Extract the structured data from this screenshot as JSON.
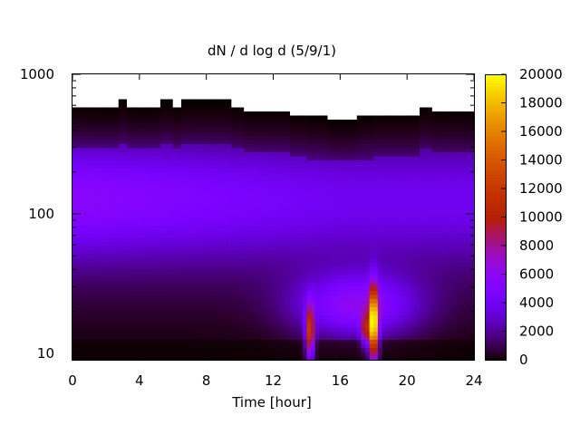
{
  "chart_data": {
    "type": "heatmap",
    "title": "dN / d log d (5/9/1)",
    "xlabel": "Time [hour]",
    "ylabel": "",
    "xlim": [
      0,
      24
    ],
    "ylim": [
      9,
      1000
    ],
    "y_scale": "log",
    "x_ticks": [
      "0",
      "4",
      "8",
      "12",
      "16",
      "20",
      "24"
    ],
    "y_ticks": [
      "10",
      "100",
      "1000"
    ],
    "colorbar": {
      "range": [
        0,
        20000
      ],
      "ticks": [
        "0",
        "2000",
        "4000",
        "6000",
        "8000",
        "10000",
        "12000",
        "14000",
        "16000",
        "18000",
        "20000"
      ],
      "colormap": "gnuplot"
    },
    "upper_edge_diameter": [
      [
        0,
        600
      ],
      [
        2,
        600
      ],
      [
        2.75,
        650
      ],
      [
        3.25,
        600
      ],
      [
        5,
        600
      ],
      [
        5.25,
        650
      ],
      [
        6,
        600
      ],
      [
        6.5,
        650
      ],
      [
        9.25,
        650
      ],
      [
        9.5,
        600
      ],
      [
        10.25,
        560
      ],
      [
        12,
        560
      ],
      [
        13,
        520
      ],
      [
        14,
        500
      ],
      [
        15.25,
        470
      ],
      [
        17,
        500
      ],
      [
        18,
        520
      ],
      [
        20.75,
        600
      ],
      [
        21.5,
        560
      ],
      [
        24,
        580
      ]
    ],
    "features": [
      {
        "time": 18.0,
        "diameter_range": [
          10,
          25
        ],
        "peak_value": 19000
      },
      {
        "time": 14.2,
        "diameter_range": [
          10,
          20
        ],
        "peak_value": 11000
      },
      {
        "time": 17.5,
        "diameter_range": [
          12,
          18
        ],
        "peak_value": 7000
      }
    ],
    "background_levels": [
      {
        "diameter_range": [
          60,
          300
        ],
        "time_range": [
          0,
          10
        ],
        "value": 4000
      },
      {
        "diameter_range": [
          12,
          40
        ],
        "time_range": [
          12,
          22
        ],
        "value": 5500
      },
      {
        "diameter_range": [
          9,
          12
        ],
        "time_range": [
          0,
          24
        ],
        "value": 800
      }
    ]
  }
}
